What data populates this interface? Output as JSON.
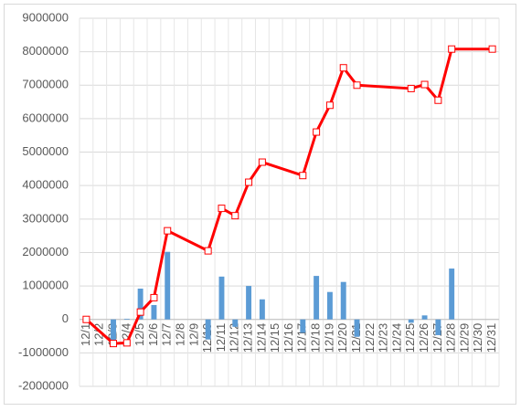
{
  "chart_data": {
    "type": "bar-line",
    "categories": [
      "12/1",
      "12/2",
      "12/3",
      "12/4",
      "12/5",
      "12/6",
      "12/7",
      "12/8",
      "12/9",
      "12/10",
      "12/11",
      "12/12",
      "12/13",
      "12/14",
      "12/15",
      "12/16",
      "12/17",
      "12/18",
      "12/19",
      "12/20",
      "12/21",
      "12/22",
      "12/23",
      "12/24",
      "12/25",
      "12/26",
      "12/27",
      "12/28",
      "12/29",
      "12/30",
      "12/31"
    ],
    "series": [
      {
        "type": "bar",
        "color": "#5b9bd5",
        "values": [
          0,
          null,
          -720000,
          20000,
          920000,
          430000,
          2020000,
          null,
          null,
          -600000,
          1280000,
          -220000,
          1000000,
          600000,
          null,
          null,
          -400000,
          1300000,
          820000,
          1120000,
          -520000,
          null,
          null,
          null,
          -100000,
          120000,
          -470000,
          1520000,
          null,
          null,
          null
        ]
      },
      {
        "type": "line",
        "color": "#ff0000",
        "x": [
          "12/1",
          "12/3",
          "12/4",
          "12/5",
          "12/6",
          "12/7",
          "12/10",
          "12/11",
          "12/12",
          "12/13",
          "12/14",
          "12/17",
          "12/18",
          "12/19",
          "12/20",
          "12/21",
          "12/25",
          "12/26",
          "12/27",
          "12/28",
          "12/31"
        ],
        "values": [
          0,
          -720000,
          -700000,
          220000,
          650000,
          2650000,
          2050000,
          3320000,
          3100000,
          4100000,
          4700000,
          4300000,
          5600000,
          6400000,
          7520000,
          7000000,
          6900000,
          7020000,
          6550000,
          8080000,
          8080000
        ]
      }
    ],
    "ylim": [
      -2000000,
      9000000
    ],
    "yticks": [
      -2000000,
      -1000000,
      0,
      1000000,
      2000000,
      3000000,
      4000000,
      5000000,
      6000000,
      7000000,
      8000000,
      9000000
    ],
    "grid": true
  }
}
